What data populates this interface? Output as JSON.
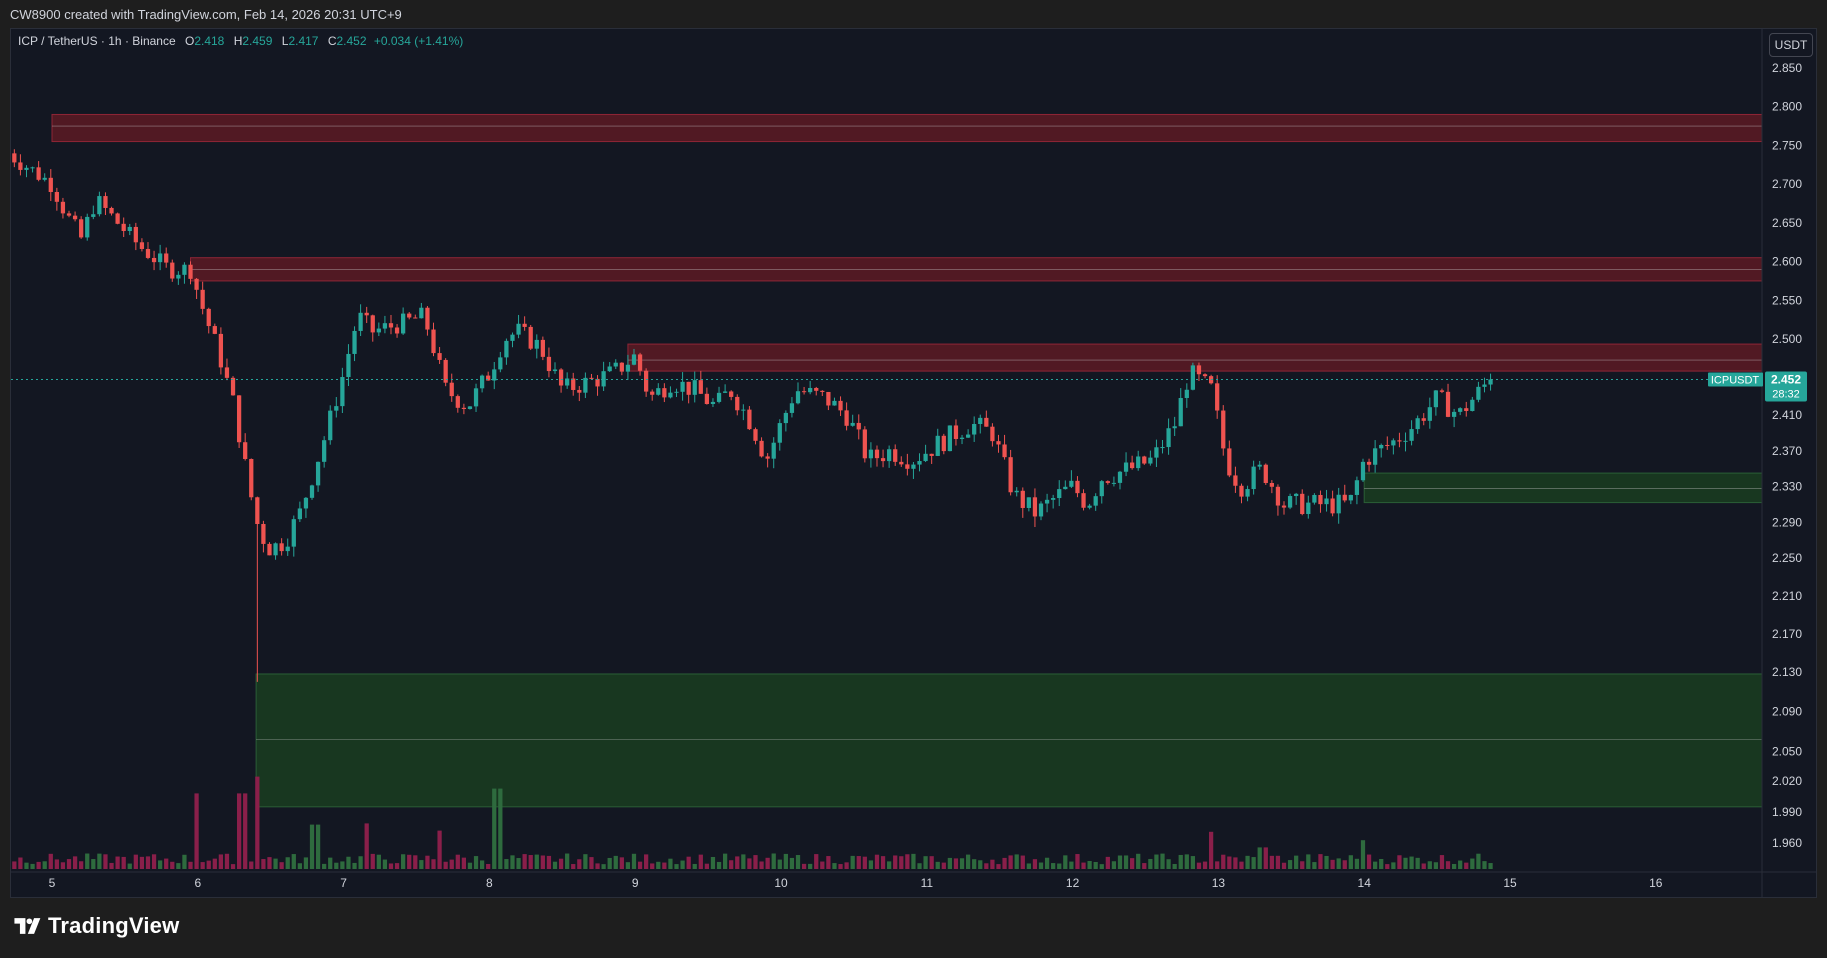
{
  "header": {
    "attribution": "CW8900 created with TradingView.com, Feb 14, 2026 20:31 UTC+9"
  },
  "legend": {
    "symbol": "ICP / TetherUS · 1h · Binance",
    "o_label": "O",
    "o_value": "2.418",
    "h_label": "H",
    "h_value": "2.459",
    "l_label": "L",
    "l_value": "2.417",
    "c_label": "C",
    "c_value": "2.452",
    "change": "+0.034 (+1.41%)"
  },
  "currency_label": "USDT",
  "price_tag": {
    "symbol": "ICPUSDT",
    "price": "2.452",
    "countdown": "28:32"
  },
  "branding": {
    "logo_text": "TradingView"
  },
  "colors": {
    "up": "#26a69a",
    "down": "#ef5350",
    "background": "#131722",
    "resistance_zone": "#5c1a24",
    "support_zone": "#1a3d20",
    "volume_up": "#2e6b3e",
    "volume_down": "#8a1f4a"
  },
  "chart_data": {
    "type": "candlestick",
    "interval": "1h",
    "x_ticks": [
      "5",
      "6",
      "7",
      "8",
      "9",
      "10",
      "11",
      "12",
      "13",
      "14",
      "15",
      "16"
    ],
    "y_ticks": [
      "2.850",
      "2.800",
      "2.750",
      "2.700",
      "2.650",
      "2.600",
      "2.550",
      "2.500",
      "2.410",
      "2.370",
      "2.330",
      "2.290",
      "2.250",
      "2.210",
      "2.170",
      "2.130",
      "2.090",
      "2.050",
      "2.020",
      "1.990",
      "1.960"
    ],
    "y_tick_values": [
      2.85,
      2.8,
      2.75,
      2.7,
      2.65,
      2.6,
      2.55,
      2.5,
      2.41,
      2.37,
      2.33,
      2.29,
      2.25,
      2.21,
      2.17,
      2.13,
      2.09,
      2.05,
      2.02,
      1.99,
      1.96
    ],
    "last_price": 2.452,
    "zones": [
      {
        "kind": "resistance",
        "start_day": 5.0,
        "low": 2.755,
        "high": 2.79,
        "mid": 2.775
      },
      {
        "kind": "resistance",
        "start_day": 5.95,
        "low": 2.575,
        "high": 2.605,
        "mid": 2.59
      },
      {
        "kind": "resistance",
        "start_day": 8.95,
        "low": 2.462,
        "high": 2.494,
        "mid": 2.475
      },
      {
        "kind": "support",
        "start_day": 14.0,
        "low": 2.312,
        "high": 2.345,
        "mid": 2.328
      },
      {
        "kind": "support",
        "start_day": 6.4,
        "low": 1.995,
        "high": 2.128,
        "mid": 2.062
      }
    ],
    "price_path": [
      [
        4.7,
        2.74
      ],
      [
        4.85,
        2.72
      ],
      [
        5.0,
        2.7
      ],
      [
        5.1,
        2.66
      ],
      [
        5.2,
        2.63
      ],
      [
        5.3,
        2.68
      ],
      [
        5.45,
        2.65
      ],
      [
        5.6,
        2.62
      ],
      [
        5.8,
        2.59
      ],
      [
        5.95,
        2.59
      ],
      [
        6.05,
        2.53
      ],
      [
        6.15,
        2.48
      ],
      [
        6.25,
        2.42
      ],
      [
        6.35,
        2.33
      ],
      [
        6.42,
        2.28
      ],
      [
        6.5,
        2.26
      ],
      [
        6.6,
        2.27
      ],
      [
        6.7,
        2.3
      ],
      [
        6.8,
        2.35
      ],
      [
        6.9,
        2.4
      ],
      [
        7.0,
        2.46
      ],
      [
        7.1,
        2.53
      ],
      [
        7.2,
        2.51
      ],
      [
        7.4,
        2.52
      ],
      [
        7.55,
        2.53
      ],
      [
        7.7,
        2.44
      ],
      [
        7.85,
        2.42
      ],
      [
        8.0,
        2.46
      ],
      [
        8.1,
        2.5
      ],
      [
        8.2,
        2.51
      ],
      [
        8.35,
        2.49
      ],
      [
        8.5,
        2.44
      ],
      [
        8.7,
        2.45
      ],
      [
        8.85,
        2.46
      ],
      [
        9.0,
        2.48
      ],
      [
        9.1,
        2.43
      ],
      [
        9.25,
        2.45
      ],
      [
        9.4,
        2.44
      ],
      [
        9.55,
        2.42
      ],
      [
        9.65,
        2.44
      ],
      [
        9.8,
        2.4
      ],
      [
        9.9,
        2.36
      ],
      [
        10.0,
        2.4
      ],
      [
        10.1,
        2.44
      ],
      [
        10.3,
        2.43
      ],
      [
        10.45,
        2.41
      ],
      [
        10.6,
        2.36
      ],
      [
        10.75,
        2.37
      ],
      [
        10.9,
        2.36
      ],
      [
        11.1,
        2.38
      ],
      [
        11.3,
        2.4
      ],
      [
        11.45,
        2.39
      ],
      [
        11.6,
        2.32
      ],
      [
        11.75,
        2.3
      ],
      [
        11.9,
        2.32
      ],
      [
        12.0,
        2.33
      ],
      [
        12.1,
        2.31
      ],
      [
        12.2,
        2.34
      ],
      [
        12.4,
        2.35
      ],
      [
        12.55,
        2.36
      ],
      [
        12.7,
        2.4
      ],
      [
        12.8,
        2.46
      ],
      [
        12.95,
        2.44
      ],
      [
        13.05,
        2.36
      ],
      [
        13.15,
        2.33
      ],
      [
        13.3,
        2.35
      ],
      [
        13.45,
        2.31
      ],
      [
        13.6,
        2.31
      ],
      [
        13.75,
        2.31
      ],
      [
        13.9,
        2.31
      ],
      [
        14.0,
        2.36
      ],
      [
        14.2,
        2.38
      ],
      [
        14.35,
        2.4
      ],
      [
        14.5,
        2.43
      ],
      [
        14.65,
        2.41
      ],
      [
        14.75,
        2.43
      ],
      [
        14.85,
        2.45
      ]
    ],
    "volume_spikes": [
      [
        6.0,
        0.63
      ],
      [
        6.3,
        0.63
      ],
      [
        6.4,
        0.77
      ],
      [
        8.05,
        0.67
      ],
      [
        7.15,
        0.38
      ],
      [
        6.8,
        0.37
      ],
      [
        7.65,
        0.32
      ],
      [
        12.95,
        0.31
      ],
      [
        14.0,
        0.24
      ],
      [
        13.3,
        0.18
      ]
    ]
  }
}
